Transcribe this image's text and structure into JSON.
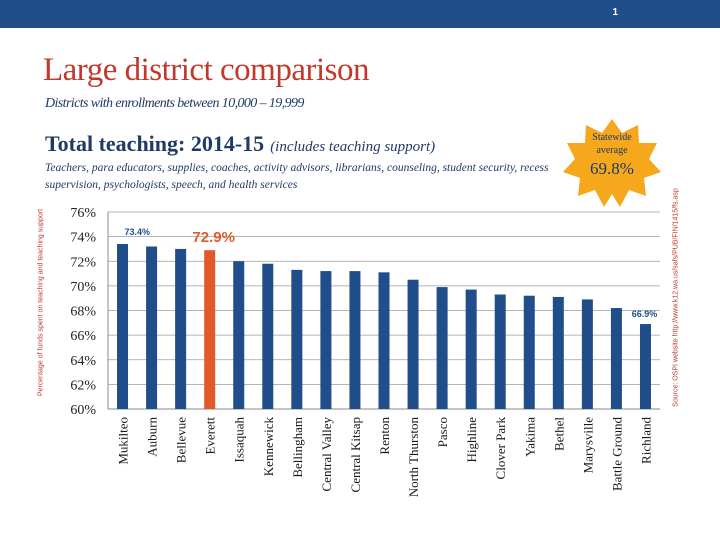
{
  "slide": {
    "number": "1"
  },
  "header": {
    "title": "Large district comparison",
    "subtitle": "Districts with enrollments between 10,000 – 19,999"
  },
  "section": {
    "heading": "Total teaching:  2014-15",
    "heading_note": "(includes teaching support)",
    "description": "Teachers, para educators, supplies, coaches, activity advisors, librarians, counseling, student security, recess supervision, psychologists, speech, and health services"
  },
  "callout": {
    "line1": "Statewide",
    "line2": "average",
    "value": "69.8%"
  },
  "source": "Source: OSPI website http://www.k12.wa.us/safs/PUB/FIN/1415/fs.asp",
  "colors": {
    "bar": "#1f4e8a",
    "highlight": "#e05a2b",
    "title": "#c0392b",
    "star": "#f5a81c"
  },
  "chart_data": {
    "type": "bar",
    "title": "",
    "xlabel": "",
    "ylabel": "Percentage of funds spent on teaching and teaching support",
    "ylim": [
      60,
      76
    ],
    "yticks": [
      "60%",
      "62%",
      "64%",
      "66%",
      "68%",
      "70%",
      "72%",
      "74%",
      "76%"
    ],
    "grid": true,
    "categories": [
      "Mukilteo",
      "Auburn",
      "Bellevue",
      "Everett",
      "Issaquah",
      "Kennewick",
      "Bellingham",
      "Central Valley",
      "Central Kitsap",
      "Renton",
      "North Thurston",
      "Pasco",
      "Highline",
      "Clover Park",
      "Yakima",
      "Bethel",
      "Marysville",
      "Battle Ground",
      "Richland"
    ],
    "values": [
      73.4,
      73.2,
      73.0,
      72.9,
      72.0,
      71.8,
      71.3,
      71.2,
      71.2,
      71.1,
      70.5,
      69.9,
      69.7,
      69.3,
      69.2,
      69.1,
      68.9,
      68.2,
      66.9
    ],
    "highlight_category": "Everett",
    "data_labels": [
      {
        "category": "Mukilteo",
        "text": "73.4%"
      },
      {
        "category": "Everett",
        "text": "72.9%"
      },
      {
        "category": "Richland",
        "text": "66.9%"
      }
    ]
  }
}
